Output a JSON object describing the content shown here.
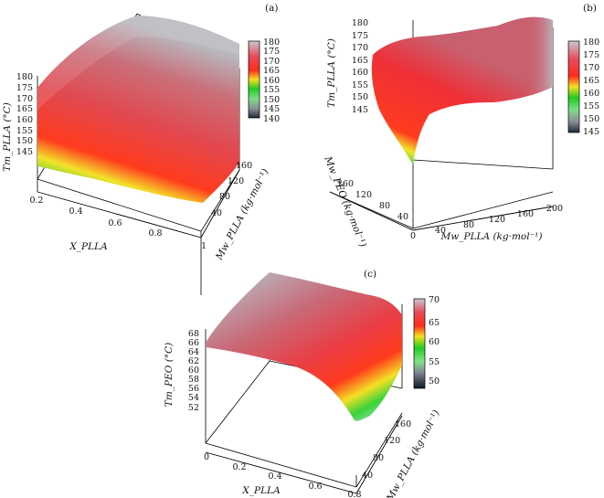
{
  "chart_data": [
    {
      "type": "surface3d",
      "panel_label": "(a)",
      "xlabel": "X_PLLA",
      "ylabel": "Mw_PLLA (kg·mol⁻¹)",
      "zlabel": "Tm_PLLA (°C)",
      "x_ticks": [
        "0.2",
        "0.4",
        "0.6",
        "0.8",
        "1"
      ],
      "y_ticks": [
        "40",
        "80",
        "120",
        "160"
      ],
      "z_ticks": [
        "145",
        "150",
        "155",
        "160",
        "165",
        "170",
        "175",
        "180"
      ],
      "colorbar_ticks": [
        "140",
        "145",
        "150",
        "155",
        "160",
        "165",
        "170",
        "175",
        "180"
      ],
      "zlim": [
        140,
        180
      ]
    },
    {
      "type": "surface3d",
      "panel_label": "(b)",
      "xlabel": "Mw_PLLA (kg·mol⁻¹)",
      "ylabel": "Mw_PEO (kg·mol⁻¹)",
      "zlabel": "Tm_PLLA (°C)",
      "x_ticks": [
        "0",
        "40",
        "80",
        "120",
        "160",
        "200"
      ],
      "y_ticks": [
        "40",
        "80",
        "120",
        "160"
      ],
      "z_ticks": [
        "145",
        "150",
        "155",
        "160",
        "165",
        "170",
        "175",
        "180"
      ],
      "colorbar_ticks": [
        "145",
        "150",
        "155",
        "160",
        "165",
        "170",
        "175",
        "180"
      ],
      "zlim": [
        145,
        180
      ]
    },
    {
      "type": "surface3d",
      "panel_label": "(c)",
      "xlabel": "X_PLLA",
      "ylabel": "Mw_PLLA (kg·mol⁻¹)",
      "zlabel": "Tm_PEO (°C)",
      "x_ticks": [
        "0",
        "0.2",
        "0.4",
        "0.6",
        "0.8"
      ],
      "y_ticks": [
        "40",
        "80",
        "120",
        "160"
      ],
      "z_ticks": [
        "52",
        "54",
        "56",
        "58",
        "60",
        "62",
        "64",
        "66",
        "68"
      ],
      "colorbar_ticks": [
        "50",
        "55",
        "60",
        "65",
        "70"
      ],
      "zlim": [
        48,
        70
      ]
    }
  ]
}
